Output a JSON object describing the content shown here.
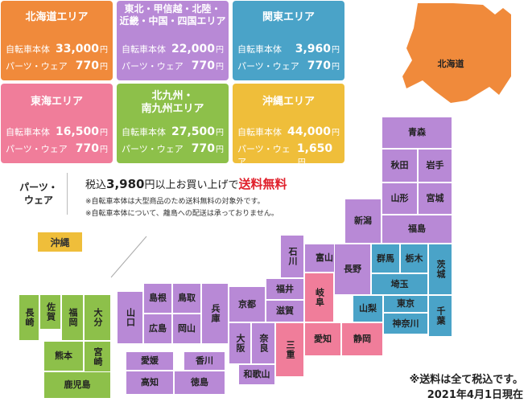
{
  "cards": [
    {
      "id": "hokkaido",
      "title": "北海道エリア",
      "bike_label": "自転車本体",
      "bike_price": "33,000",
      "parts_label": "パーツ・ウェア",
      "parts_price": "770",
      "color": "#f08a3b"
    },
    {
      "id": "tohoku",
      "title": "東北・甲信越・北陸・近畿・中国・四国エリア",
      "title_line1": "東北・甲信越・北陸・",
      "title_line2": "近畿・中国・四国エリア",
      "bike_label": "自転車本体",
      "bike_price": "22,000",
      "parts_label": "パーツ・ウェア",
      "parts_price": "770",
      "color": "#b889d6"
    },
    {
      "id": "kanto",
      "title": "関東エリア",
      "bike_label": "自転車本体",
      "bike_price": "3,960",
      "parts_label": "パーツ・ウェア",
      "parts_price": "770",
      "color": "#4aa3c8"
    },
    {
      "id": "tokai",
      "title": "東海エリア",
      "bike_label": "自転車本体",
      "bike_price": "16,500",
      "parts_label": "パーツ・ウェア",
      "parts_price": "770",
      "color": "#f07d9a"
    },
    {
      "id": "kyushu",
      "title_line1": "北九州・",
      "title_line2": "南九州エリア",
      "bike_label": "自転車本体",
      "bike_price": "27,500",
      "parts_label": "パーツ・ウェア",
      "parts_price": "770",
      "color": "#8dc04a"
    },
    {
      "id": "okinawa",
      "title": "沖縄エリア",
      "bike_label": "自転車本体",
      "bike_price": "44,000",
      "parts_label": "パーツ・ウェア",
      "parts_price": "1,650",
      "color": "#efbe3a"
    }
  ],
  "yen": "円",
  "parts_section": {
    "label_line1": "パーツ・",
    "label_line2": "ウェア",
    "promo_pre": "税込",
    "promo_amount": "3,980",
    "promo_mid": "円以上お買い上げで",
    "promo_free": "送料無料",
    "note1": "※自転車本体は大型商品のため送料無料の対象外です。",
    "note2": "※自転車本体について、離島への配送は承っておりません。"
  },
  "okinawa_badge": "沖縄",
  "prefectures": {
    "hokkaido": "北海道",
    "aomori": "青森",
    "akita": "秋田",
    "iwate": "岩手",
    "yamagata": "山形",
    "miyagi": "宮城",
    "fukushima": "福島",
    "niigata": "新潟",
    "ishikawa": "石川",
    "toyama": "富山",
    "fukui": "福井",
    "nagano": "長野",
    "gunma": "群馬",
    "tochigi": "栃木",
    "ibaraki": "茨城",
    "saitama": "埼玉",
    "yamanashi": "山梨",
    "tokyo": "東京",
    "kanagawa": "神奈川",
    "chiba": "千葉",
    "gifu": "岐阜",
    "shiga": "滋賀",
    "kyoto": "京都",
    "osaka": "大阪",
    "nara": "奈良",
    "wakayama": "和歌山",
    "mie": "三重",
    "aichi": "愛知",
    "shizuoka": "静岡",
    "hyogo": "兵庫",
    "tottori": "鳥取",
    "shimane": "島根",
    "okayama": "岡山",
    "hiroshima": "広島",
    "yamaguchi": "山口",
    "ehime": "愛媛",
    "kagawa": "香川",
    "kochi": "高知",
    "tokushima": "徳島",
    "nagasaki": "長崎",
    "saga": "佐賀",
    "fukuoka": "福岡",
    "oita": "大分",
    "kumamoto": "熊本",
    "miyazaki": "宮崎",
    "kagoshima": "鹿児島"
  },
  "footer_line1": "※送料は全て税込です。",
  "footer_line2": "2021年4月1日現在"
}
